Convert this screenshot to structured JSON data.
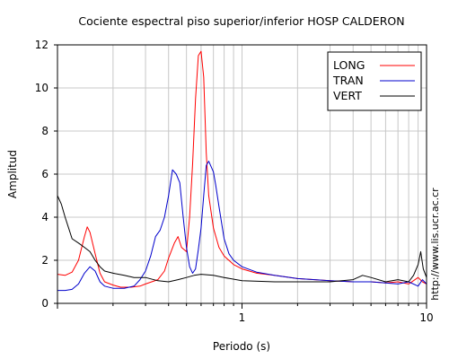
{
  "chart_data": {
    "type": "line",
    "title": "Cociente espectral piso superior/inferior  HOSP CALDERON",
    "xlabel": "Periodo (s)",
    "ylabel": "Amplitud",
    "xscale": "log",
    "xlim": [
      0.1,
      10
    ],
    "ylim": [
      0,
      12
    ],
    "xticklabels": [
      "1",
      "10"
    ],
    "yticks": [
      0,
      2,
      4,
      6,
      8,
      10,
      12
    ],
    "grid": true,
    "legend_position": "top-right",
    "side_text": "http://www.lis.ucr.ac.cr",
    "series": [
      {
        "name": "LONG",
        "color": "#ff0000",
        "points": [
          [
            0.1,
            1.35
          ],
          [
            0.11,
            1.3
          ],
          [
            0.12,
            1.45
          ],
          [
            0.13,
            2.0
          ],
          [
            0.14,
            3.1
          ],
          [
            0.145,
            3.55
          ],
          [
            0.15,
            3.3
          ],
          [
            0.16,
            2.3
          ],
          [
            0.17,
            1.4
          ],
          [
            0.18,
            1.0
          ],
          [
            0.2,
            0.85
          ],
          [
            0.22,
            0.75
          ],
          [
            0.25,
            0.75
          ],
          [
            0.28,
            0.8
          ],
          [
            0.3,
            0.9
          ],
          [
            0.35,
            1.1
          ],
          [
            0.38,
            1.5
          ],
          [
            0.4,
            2.1
          ],
          [
            0.43,
            2.8
          ],
          [
            0.45,
            3.1
          ],
          [
            0.47,
            2.6
          ],
          [
            0.5,
            2.4
          ],
          [
            0.52,
            4.0
          ],
          [
            0.54,
            6.5
          ],
          [
            0.56,
            9.5
          ],
          [
            0.58,
            11.5
          ],
          [
            0.6,
            11.7
          ],
          [
            0.62,
            10.5
          ],
          [
            0.64,
            7.0
          ],
          [
            0.66,
            5.0
          ],
          [
            0.7,
            3.5
          ],
          [
            0.75,
            2.6
          ],
          [
            0.8,
            2.2
          ],
          [
            0.9,
            1.8
          ],
          [
            1.0,
            1.6
          ],
          [
            1.2,
            1.4
          ],
          [
            1.5,
            1.3
          ],
          [
            2.0,
            1.15
          ],
          [
            3.0,
            1.05
          ],
          [
            4.0,
            1.0
          ],
          [
            5.0,
            1.0
          ],
          [
            6.0,
            0.95
          ],
          [
            7.0,
            1.0
          ],
          [
            8.0,
            0.9
          ],
          [
            9.0,
            1.2
          ],
          [
            9.5,
            1.0
          ],
          [
            10,
            0.9
          ]
        ]
      },
      {
        "name": "TRAN",
        "color": "#0000cc",
        "points": [
          [
            0.1,
            0.6
          ],
          [
            0.11,
            0.6
          ],
          [
            0.12,
            0.65
          ],
          [
            0.13,
            0.9
          ],
          [
            0.14,
            1.4
          ],
          [
            0.15,
            1.7
          ],
          [
            0.16,
            1.5
          ],
          [
            0.17,
            1.0
          ],
          [
            0.18,
            0.8
          ],
          [
            0.2,
            0.7
          ],
          [
            0.23,
            0.7
          ],
          [
            0.26,
            0.8
          ],
          [
            0.28,
            1.1
          ],
          [
            0.3,
            1.5
          ],
          [
            0.32,
            2.2
          ],
          [
            0.34,
            3.1
          ],
          [
            0.36,
            3.4
          ],
          [
            0.38,
            4.0
          ],
          [
            0.4,
            5.0
          ],
          [
            0.42,
            6.2
          ],
          [
            0.44,
            6.0
          ],
          [
            0.46,
            5.6
          ],
          [
            0.48,
            4.0
          ],
          [
            0.5,
            2.6
          ],
          [
            0.52,
            1.7
          ],
          [
            0.54,
            1.4
          ],
          [
            0.56,
            1.6
          ],
          [
            0.58,
            2.5
          ],
          [
            0.6,
            3.5
          ],
          [
            0.62,
            5.0
          ],
          [
            0.64,
            6.4
          ],
          [
            0.66,
            6.6
          ],
          [
            0.7,
            6.1
          ],
          [
            0.72,
            5.5
          ],
          [
            0.75,
            4.5
          ],
          [
            0.8,
            3.0
          ],
          [
            0.85,
            2.3
          ],
          [
            0.9,
            2.0
          ],
          [
            1.0,
            1.7
          ],
          [
            1.2,
            1.45
          ],
          [
            1.5,
            1.3
          ],
          [
            2.0,
            1.15
          ],
          [
            3.0,
            1.05
          ],
          [
            4.0,
            1.0
          ],
          [
            5.0,
            1.0
          ],
          [
            6.0,
            0.95
          ],
          [
            7.0,
            0.9
          ],
          [
            8.0,
            1.0
          ],
          [
            9.0,
            0.8
          ],
          [
            9.5,
            1.1
          ],
          [
            10,
            0.9
          ]
        ]
      },
      {
        "name": "VERT",
        "color": "#000000",
        "points": [
          [
            0.1,
            5.0
          ],
          [
            0.105,
            4.6
          ],
          [
            0.11,
            4.0
          ],
          [
            0.12,
            3.0
          ],
          [
            0.13,
            2.8
          ],
          [
            0.14,
            2.6
          ],
          [
            0.15,
            2.4
          ],
          [
            0.16,
            2.0
          ],
          [
            0.17,
            1.7
          ],
          [
            0.18,
            1.5
          ],
          [
            0.2,
            1.4
          ],
          [
            0.23,
            1.3
          ],
          [
            0.26,
            1.2
          ],
          [
            0.3,
            1.2
          ],
          [
            0.35,
            1.05
          ],
          [
            0.4,
            1.0
          ],
          [
            0.45,
            1.1
          ],
          [
            0.5,
            1.2
          ],
          [
            0.55,
            1.3
          ],
          [
            0.6,
            1.35
          ],
          [
            0.7,
            1.3
          ],
          [
            0.8,
            1.2
          ],
          [
            1.0,
            1.05
          ],
          [
            1.5,
            1.0
          ],
          [
            2.0,
            1.0
          ],
          [
            3.0,
            1.0
          ],
          [
            4.0,
            1.1
          ],
          [
            4.5,
            1.3
          ],
          [
            5.0,
            1.2
          ],
          [
            6.0,
            1.0
          ],
          [
            7.0,
            1.1
          ],
          [
            8.0,
            1.0
          ],
          [
            8.5,
            1.3
          ],
          [
            9.0,
            1.8
          ],
          [
            9.3,
            2.4
          ],
          [
            9.6,
            1.6
          ],
          [
            10,
            1.2
          ]
        ]
      }
    ]
  }
}
